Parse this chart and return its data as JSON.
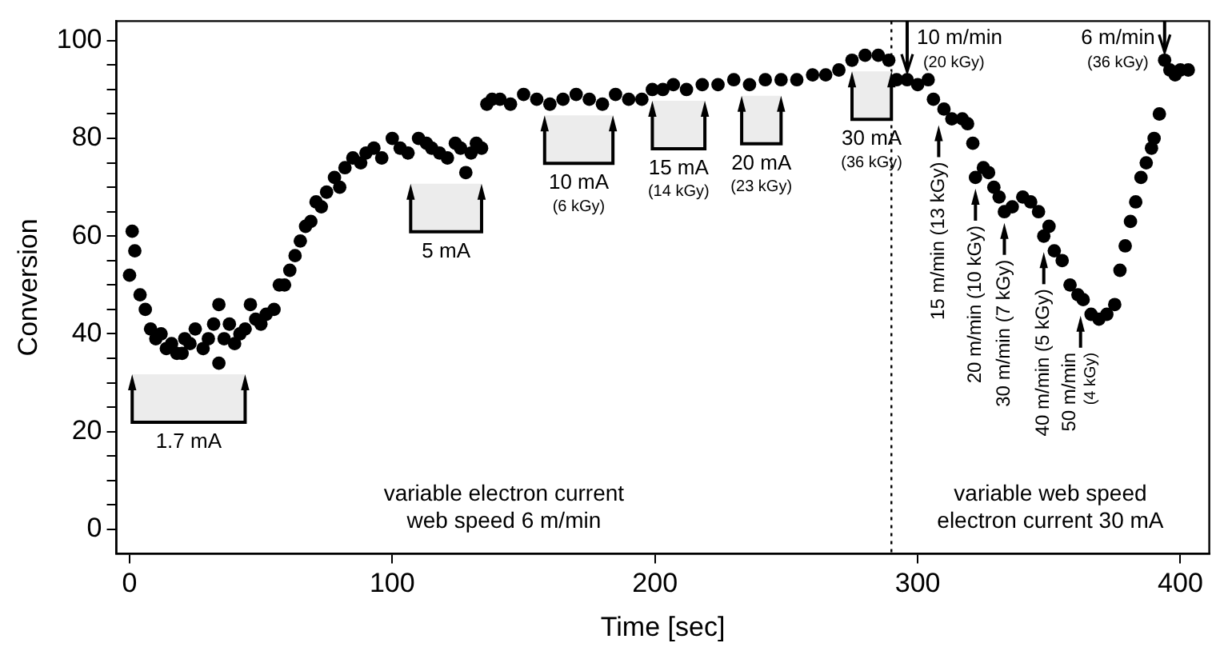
{
  "chart_data": {
    "type": "scatter",
    "xlabel": "Time [sec]",
    "ylabel": "Conversion",
    "marker": "circle",
    "grid": false,
    "legend": false,
    "xlim": [
      -5,
      411
    ],
    "ylim": [
      -5,
      104
    ],
    "xticks": [
      0,
      100,
      200,
      300,
      400
    ],
    "yticks": [
      0,
      {
        "value": 5,
        "label": null
      },
      {
        "value": 10,
        "label": null
      },
      {
        "value": 15,
        "label": null
      },
      20,
      {
        "value": 25,
        "label": null
      },
      {
        "value": 30,
        "label": null
      },
      {
        "value": 35,
        "label": null
      },
      40,
      {
        "value": 45,
        "label": null
      },
      {
        "value": 50,
        "label": null
      },
      {
        "value": 55,
        "label": null
      },
      60,
      {
        "value": 65,
        "label": null
      },
      {
        "value": 70,
        "label": null
      },
      {
        "value": 75,
        "label": null
      },
      80,
      {
        "value": 85,
        "label": null
      },
      {
        "value": 90,
        "label": null
      },
      {
        "value": 95,
        "label": null
      },
      100
    ],
    "series": [
      {
        "color": "#000000",
        "x": [
          0,
          1,
          2,
          4,
          6,
          8,
          10,
          12,
          14,
          16,
          18,
          20,
          21,
          23,
          25,
          28,
          30,
          32,
          34,
          34,
          36,
          38,
          40,
          42,
          44,
          46,
          48,
          50,
          52,
          55,
          57,
          59,
          61,
          63,
          65,
          67,
          69,
          71,
          73,
          75,
          78,
          80,
          82,
          85,
          88,
          90,
          93,
          96,
          100,
          103,
          106,
          110,
          113,
          115,
          118,
          121,
          124,
          126,
          128,
          130,
          132,
          134,
          136,
          138,
          141,
          145,
          150,
          155,
          160,
          165,
          170,
          175,
          180,
          185,
          190,
          195,
          199,
          203,
          207,
          212,
          218,
          224,
          230,
          236,
          242,
          248,
          254,
          260,
          265,
          270,
          275,
          280,
          285,
          289,
          292,
          296,
          300,
          304,
          306,
          310,
          313,
          317,
          319,
          321,
          322,
          325,
          327,
          329,
          331,
          333,
          336,
          340,
          343,
          346,
          348,
          350,
          352,
          355,
          358,
          361,
          363,
          366,
          369,
          372,
          375,
          377,
          379,
          381,
          383,
          385,
          387,
          389,
          390,
          392,
          394,
          396,
          398,
          400,
          403
        ],
        "values": [
          52,
          61,
          57,
          48,
          45,
          41,
          39,
          40,
          37,
          38,
          36,
          36,
          39,
          38,
          41,
          37,
          39,
          42,
          46,
          34,
          39,
          42,
          38,
          40,
          41,
          46,
          43,
          42,
          44,
          45,
          50,
          50,
          53,
          56,
          59,
          62,
          63,
          67,
          66,
          69,
          72,
          70,
          74,
          76,
          75,
          77,
          78,
          76,
          80,
          78,
          77,
          80,
          79,
          78,
          77,
          76,
          79,
          78,
          73,
          77,
          79,
          78,
          87,
          88,
          88,
          87,
          89,
          88,
          87,
          88,
          89,
          88,
          87,
          89,
          88,
          88,
          90,
          90,
          91,
          90,
          91,
          91,
          92,
          91,
          92,
          92,
          92,
          93,
          93,
          94,
          96,
          97,
          97,
          96,
          92,
          92,
          91,
          92,
          88,
          86,
          84,
          84,
          83,
          79,
          72,
          74,
          73,
          70,
          68,
          65,
          66,
          68,
          67,
          65,
          60,
          62,
          57,
          55,
          50,
          48,
          47,
          44,
          43,
          44,
          46,
          53,
          58,
          63,
          67,
          72,
          75,
          78,
          80,
          85,
          96,
          94,
          93,
          94,
          94
        ]
      }
    ],
    "ref_lines": [
      {
        "axis": "x",
        "value": 290,
        "line_style": "dotted"
      }
    ],
    "bands": [
      {
        "axis": "x",
        "from": 1,
        "to": 44,
        "label": "1.7 mA",
        "color": "#ececec"
      },
      {
        "axis": "x",
        "from": 107,
        "to": 134,
        "label": "5 mA",
        "color": "#ececec"
      },
      {
        "axis": "x",
        "from": 158,
        "to": 184,
        "label": "10 mA\n(6 kGy)",
        "color": "#ececec"
      },
      {
        "axis": "x",
        "from": 199,
        "to": 219,
        "label": "15 mA\n(14 kGy)",
        "color": "#ececec"
      },
      {
        "axis": "x",
        "from": 233,
        "to": 248,
        "label": "20 mA\n(23 kGy)",
        "color": "#ececec"
      },
      {
        "axis": "x",
        "from": 275,
        "to": 290,
        "label": "30 mA\n(36 kGy)",
        "color": "#ececec"
      }
    ],
    "annotations": [
      {
        "text": "10 m/min\n(20 kGy)",
        "x": 296,
        "y": 92
      },
      {
        "text": "15 m/min (13 kGy)",
        "x": 308,
        "y": 85
      },
      {
        "text": "20 m/min (10 kGy)",
        "x": 322,
        "y": 72
      },
      {
        "text": "30 m/min (7 kGy)",
        "x": 333,
        "y": 65
      },
      {
        "text": "40 m/min (5 kGy)",
        "x": 348,
        "y": 59
      },
      {
        "text": "50 m/min\n(4 kGy)",
        "x": 362,
        "y": 46
      },
      {
        "text": "6 m/min\n(36 kGy)",
        "x": 394,
        "y": 96
      },
      "variable electron current\nweb speed 6 m/min",
      "variable web speed\nelectron current 30 mA"
    ]
  }
}
